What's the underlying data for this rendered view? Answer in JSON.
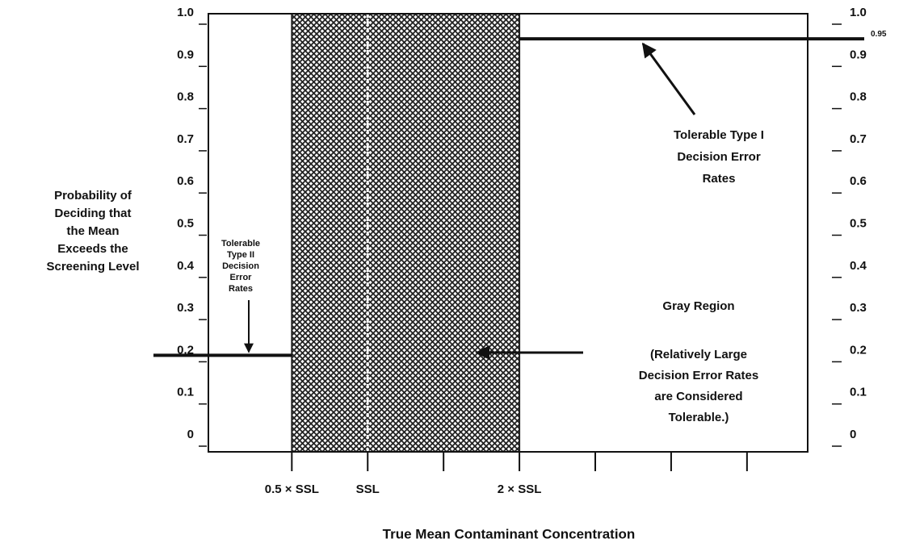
{
  "chart_data": {
    "type": "decision_performance",
    "xlabel": "True Mean Contaminant Concentration",
    "ylabel": [
      "Probability of",
      "Deciding that",
      "the Mean",
      "Exceeds the",
      "Screening Level"
    ],
    "xlim": [
      -0.05,
      3.9
    ],
    "ylim": [
      0,
      1
    ],
    "xticks": [
      {
        "value": 0.5,
        "label": "0.5 × SSL"
      },
      {
        "value": 1,
        "label": "SSL"
      },
      {
        "value": 1.5,
        "label": null
      },
      {
        "value": 2,
        "label": "2 × SSL"
      },
      {
        "value": 2.5,
        "label": null
      },
      {
        "value": 3,
        "label": null
      },
      {
        "value": 3.5,
        "label": null
      }
    ],
    "yticks": [
      0,
      0.1,
      0.2,
      0.3,
      0.4,
      0.5,
      0.6,
      0.7,
      0.8,
      0.9,
      {
        "value": 1,
        "label": "1.0"
      }
    ],
    "y2ticks": [
      0,
      0.1,
      0.2,
      0.3,
      0.4,
      0.5,
      0.6,
      0.7,
      0.8,
      0.9,
      {
        "value": 1,
        "label": "1.0"
      }
    ],
    "gray_region": [
      0.5,
      2
    ],
    "action_level": 1,
    "type_ii_limit": {
      "value": 0.2,
      "note": [
        "Tolerable",
        "Type II",
        "Decision",
        "Error",
        "Rates"
      ]
    },
    "type_i_limit": {
      "value": 0.95,
      "note": [
        "Tolerable Type I",
        "Decision Error",
        "Rates"
      ]
    },
    "gray_note": [
      "Gray Region",
      "(Relatively Large",
      "Decision Error Rates",
      "are Considered",
      "Tolerable.)"
    ],
    "hatch_color": "#222"
  }
}
